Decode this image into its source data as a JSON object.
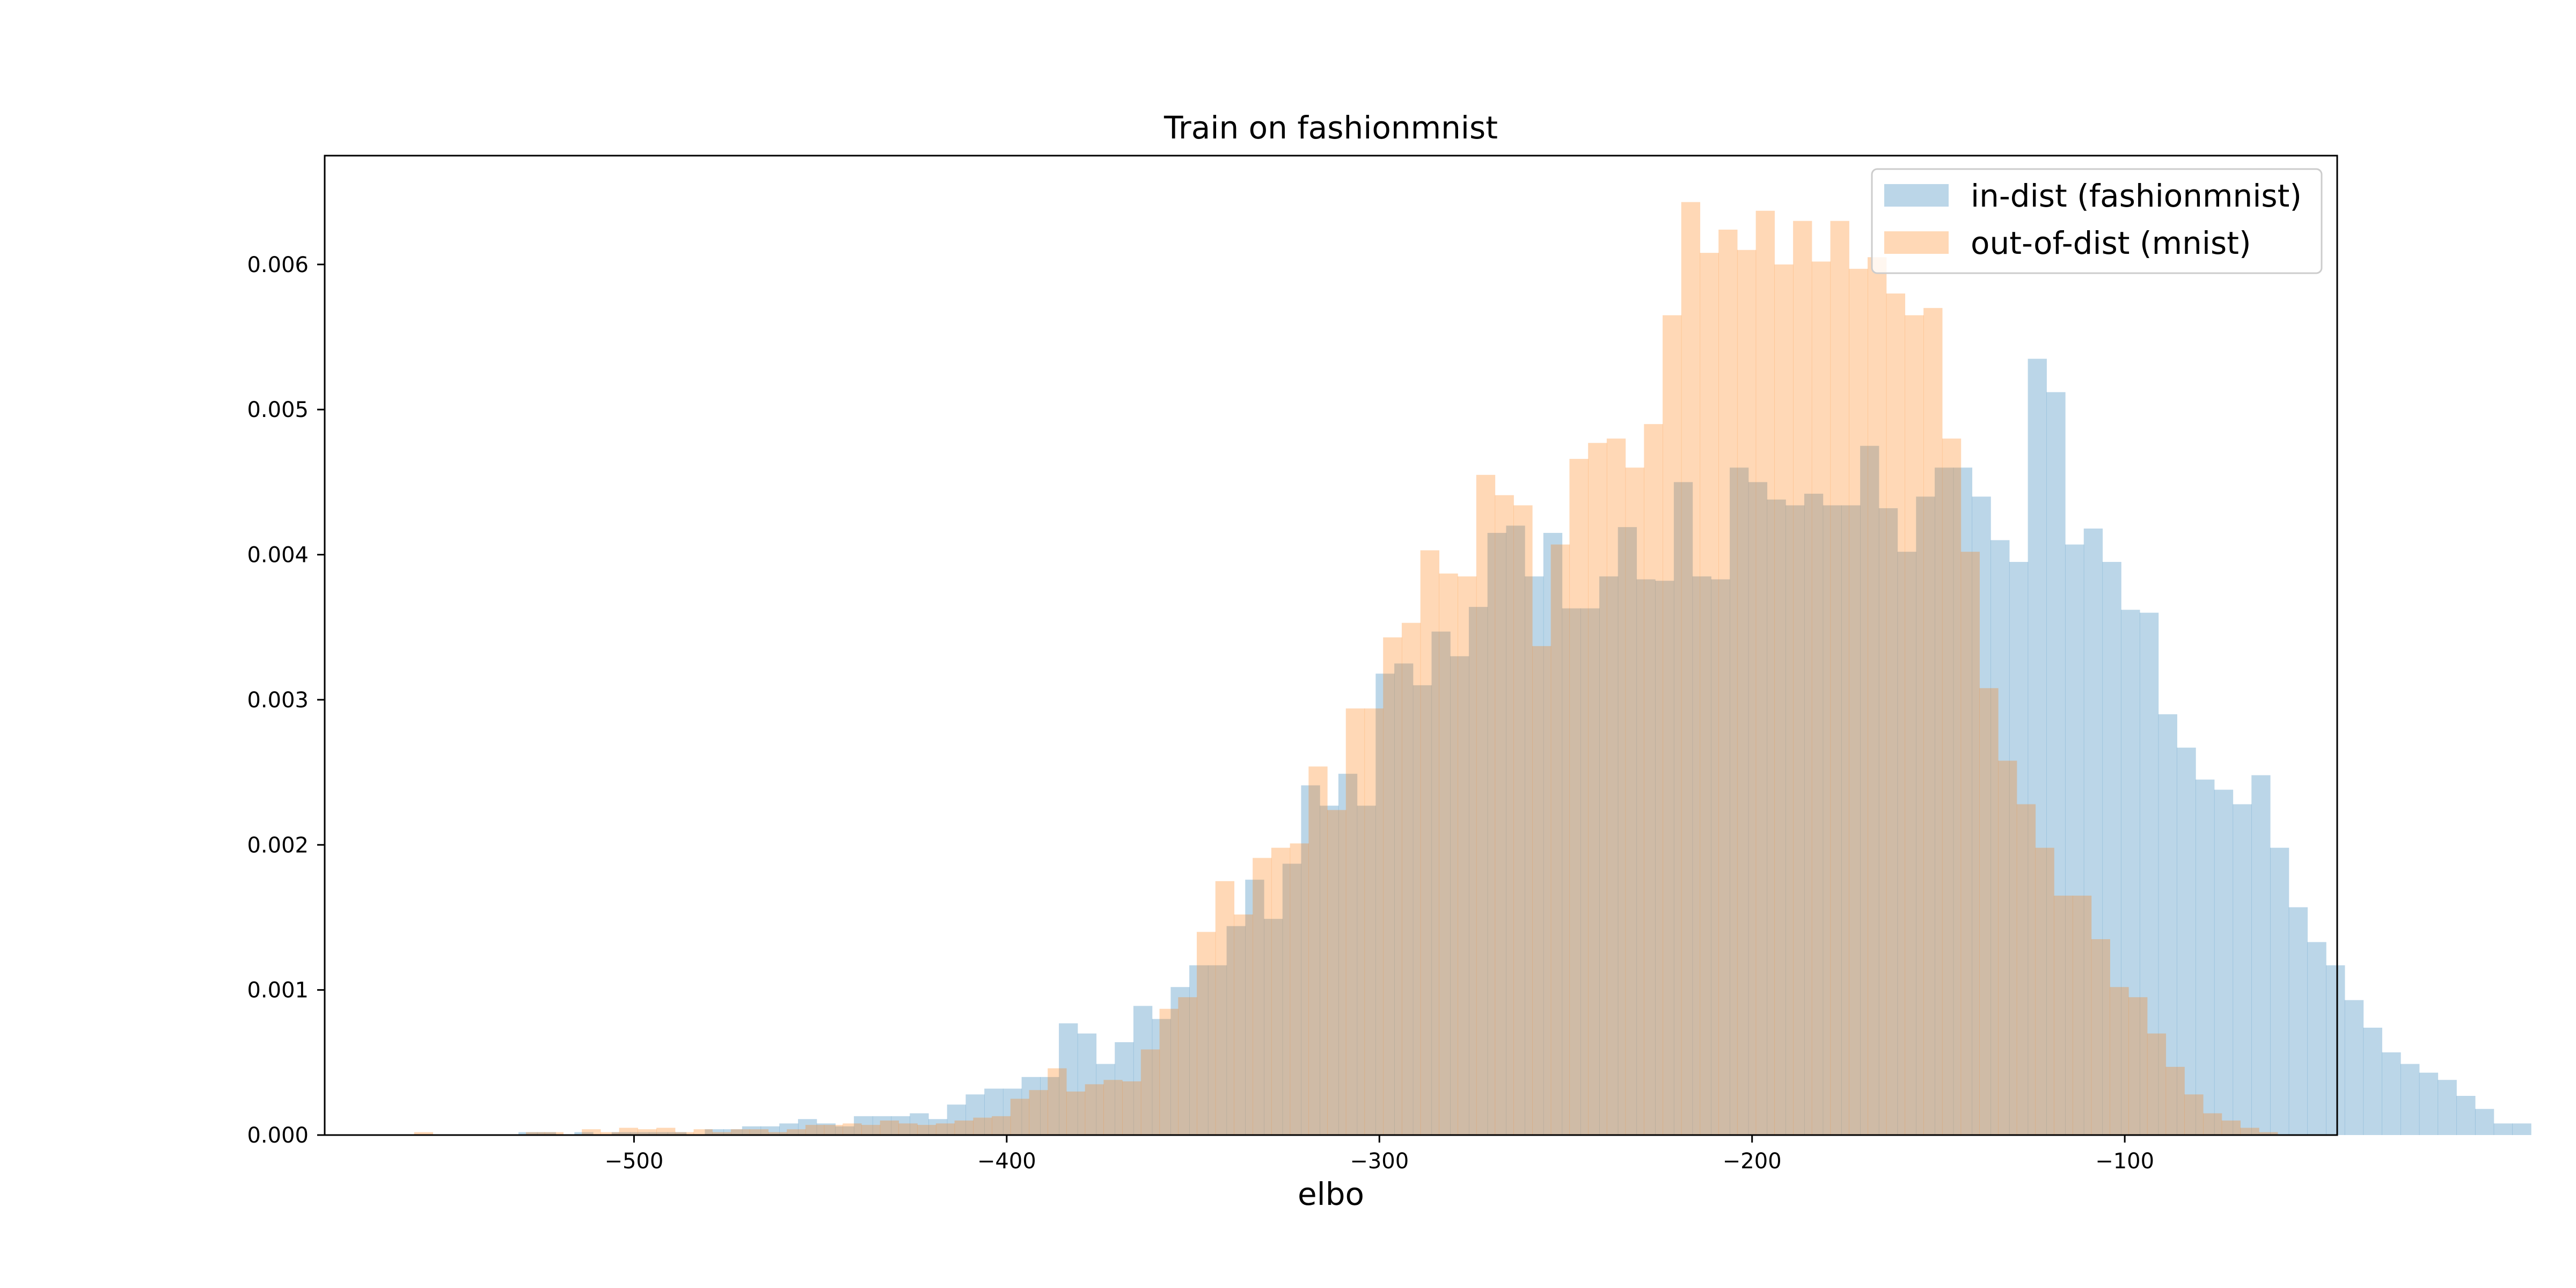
{
  "chart_data": {
    "type": "histogram",
    "title": "Train on fashionmnist",
    "xlabel": "elbo",
    "ylabel": "",
    "xlim": [
      -583,
      -43
    ],
    "ylim": [
      0,
      0.00675
    ],
    "xticks": [
      -500,
      -400,
      -300,
      -200,
      -100
    ],
    "xtick_labels": [
      "−500",
      "−400",
      "−300",
      "−200",
      "−100"
    ],
    "yticks": [
      0.0,
      0.001,
      0.002,
      0.003,
      0.004,
      0.005,
      0.006
    ],
    "ytick_labels": [
      "0.000",
      "0.001",
      "0.002",
      "0.003",
      "0.004",
      "0.005",
      "0.006"
    ],
    "grid": false,
    "legend_position": "top-right",
    "bar_opacity": 0.3,
    "series": [
      {
        "name": "in-dist (fashionmnist)",
        "color": "#1f77b4",
        "bin_start": -536,
        "bin_width": 5,
        "values": [
          0,
          2e-05,
          2e-05,
          0,
          2e-05,
          0,
          2e-05,
          2e-05,
          2e-05,
          2e-05,
          0,
          4e-05,
          4e-05,
          6e-05,
          6e-05,
          8e-05,
          0.00011,
          8e-05,
          6e-05,
          0.00013,
          0.00013,
          0.00013,
          0.00015,
          0.00011,
          0.00021,
          0.00028,
          0.00032,
          0.00032,
          0.0004,
          0.0004,
          0.00077,
          0.0007,
          0.00049,
          0.00064,
          0.00089,
          0.0008,
          0.00102,
          0.00117,
          0.00117,
          0.00144,
          0.00176,
          0.00149,
          0.00187,
          0.00241,
          0.00227,
          0.00249,
          0.00227,
          0.00318,
          0.00325,
          0.0031,
          0.00347,
          0.0033,
          0.00364,
          0.00415,
          0.0042,
          0.00385,
          0.00415,
          0.00363,
          0.00363,
          0.00385,
          0.00419,
          0.00383,
          0.00382,
          0.0045,
          0.00385,
          0.00383,
          0.0046,
          0.0045,
          0.00438,
          0.00434,
          0.00442,
          0.00434,
          0.00434,
          0.00475,
          0.00432,
          0.00402,
          0.0044,
          0.0046,
          0.0046,
          0.0044,
          0.0041,
          0.00395,
          0.00535,
          0.00512,
          0.00407,
          0.00418,
          0.00395,
          0.00362,
          0.0036,
          0.0029,
          0.00267,
          0.00245,
          0.00238,
          0.00228,
          0.00248,
          0.00198,
          0.00157,
          0.00133,
          0.00117,
          0.00093,
          0.00074,
          0.00057,
          0.00049,
          0.00043,
          0.00038,
          0.00027,
          0.00018,
          8e-05,
          8e-05
        ],
        "note": ""
      },
      {
        "name": "out-of-dist (mnist)",
        "color": "#ff7f0e",
        "bin_start": -559,
        "bin_width": 5,
        "values": [
          2e-05,
          0,
          0,
          0,
          0,
          0,
          2e-05,
          2e-05,
          0,
          4e-05,
          2e-05,
          5e-05,
          4e-05,
          5e-05,
          2e-05,
          4e-05,
          2e-05,
          4e-05,
          4e-05,
          2e-05,
          4e-05,
          7e-05,
          7e-05,
          8e-05,
          7e-05,
          0.0001,
          8e-05,
          7e-05,
          8e-05,
          0.0001,
          0.00012,
          0.00013,
          0.00025,
          0.00031,
          0.00046,
          0.0003,
          0.00035,
          0.00038,
          0.00037,
          0.00059,
          0.00087,
          0.00095,
          0.0014,
          0.00175,
          0.00152,
          0.00191,
          0.00198,
          0.00201,
          0.00254,
          0.00224,
          0.00294,
          0.00294,
          0.00343,
          0.00353,
          0.00403,
          0.00387,
          0.00385,
          0.00455,
          0.00441,
          0.00434,
          0.00337,
          0.00407,
          0.00466,
          0.00477,
          0.0048,
          0.0046,
          0.0049,
          0.00565,
          0.00643,
          0.00608,
          0.00624,
          0.0061,
          0.00637,
          0.006,
          0.0063,
          0.00602,
          0.0063,
          0.00597,
          0.00605,
          0.0058,
          0.00565,
          0.0057,
          0.0048,
          0.00402,
          0.00308,
          0.00258,
          0.00228,
          0.00198,
          0.00165,
          0.00165,
          0.00135,
          0.00102,
          0.00095,
          0.0007,
          0.00047,
          0.00028,
          0.00015,
          0.0001,
          5e-05,
          2e-05
        ]
      }
    ]
  }
}
